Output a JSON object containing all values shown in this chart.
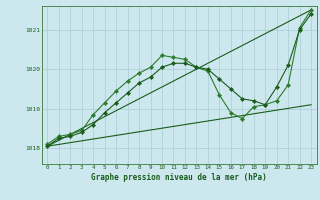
{
  "background_color": "#cce8ee",
  "grid_color": "#aaccd4",
  "line_color_dark": "#1a5c1a",
  "line_color_mid": "#2d7a2d",
  "xlabel": "Graphe pression niveau de la mer (hPa)",
  "xlim": [
    -0.5,
    23.5
  ],
  "ylim": [
    1017.6,
    1021.6
  ],
  "yticks": [
    1018,
    1019,
    1020,
    1021
  ],
  "xtick_labels": [
    "0",
    "1",
    "2",
    "3",
    "4",
    "5",
    "6",
    "7",
    "8",
    "9",
    "10",
    "11",
    "12",
    "13",
    "14",
    "15",
    "16",
    "17",
    "18",
    "19",
    "20",
    "21",
    "22",
    "23"
  ],
  "series_wavy1": {
    "x": [
      0,
      1,
      2,
      3,
      4,
      5,
      6,
      7,
      8,
      9,
      10,
      11,
      12,
      13,
      14,
      15,
      16,
      17,
      18,
      19,
      20,
      21,
      22,
      23
    ],
    "y": [
      1018.1,
      1018.3,
      1018.35,
      1018.45,
      1018.85,
      1019.15,
      1019.45,
      1019.7,
      1019.9,
      1020.05,
      1020.35,
      1020.3,
      1020.25,
      1020.05,
      1019.95,
      1019.35,
      1018.9,
      1018.75,
      1019.05,
      1019.1,
      1019.2,
      1019.6,
      1021.05,
      1021.5
    ]
  },
  "series_wavy2": {
    "x": [
      0,
      1,
      2,
      3,
      4,
      5,
      6,
      7,
      8,
      9,
      10,
      11,
      12,
      13,
      14,
      15,
      16,
      17,
      18,
      19,
      20,
      21,
      22,
      23
    ],
    "y": [
      1018.05,
      1018.25,
      1018.3,
      1018.4,
      1018.6,
      1018.9,
      1019.15,
      1019.4,
      1019.65,
      1019.8,
      1020.05,
      1020.15,
      1020.15,
      1020.05,
      1020.0,
      1019.75,
      1019.5,
      1019.25,
      1019.2,
      1019.1,
      1019.55,
      1020.1,
      1021.0,
      1021.4
    ]
  },
  "series_line1": {
    "x": [
      0,
      23
    ],
    "y": [
      1018.05,
      1021.5
    ]
  },
  "series_line2": {
    "x": [
      0,
      23
    ],
    "y": [
      1018.05,
      1019.1
    ]
  }
}
